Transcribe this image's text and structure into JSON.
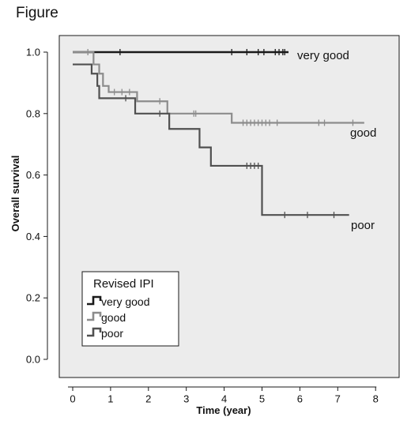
{
  "page": {
    "title": "Figure"
  },
  "chart_data": {
    "type": "line",
    "title": "",
    "xlabel": "Time (year)",
    "ylabel": "Overall survival",
    "xlim": [
      0,
      8
    ],
    "ylim": [
      0,
      1
    ],
    "x_ticks": [
      0,
      1,
      2,
      3,
      4,
      5,
      6,
      7,
      8
    ],
    "y_ticks": [
      "0.0",
      "0.2",
      "0.4",
      "0.6",
      "0.8",
      "1.0"
    ],
    "grid": false,
    "legend": {
      "title": "Revised IPI",
      "placement": "bottom-left",
      "entries": [
        "very good",
        "good",
        "poor"
      ]
    },
    "series": [
      {
        "name": "very good",
        "color": "#1a1a1a",
        "steps": [
          [
            0,
            1.0
          ],
          [
            5.7,
            1.0
          ]
        ],
        "censored": [
          1.25,
          4.2,
          4.6,
          4.9,
          5.05,
          5.35,
          5.45,
          5.55,
          5.6
        ]
      },
      {
        "name": "good",
        "color": "#8c8c8c",
        "steps": [
          [
            0,
            1.0
          ],
          [
            0.55,
            0.96
          ],
          [
            0.7,
            0.93
          ],
          [
            0.8,
            0.89
          ],
          [
            0.95,
            0.87
          ],
          [
            1.7,
            0.84
          ],
          [
            2.5,
            0.8
          ],
          [
            4.2,
            0.77
          ],
          [
            7.7,
            0.77
          ]
        ],
        "censored": [
          0.4,
          1.1,
          1.3,
          1.5,
          2.3,
          3.2,
          3.25,
          4.5,
          4.6,
          4.7,
          4.8,
          4.9,
          5.0,
          5.1,
          5.2,
          5.4,
          6.5,
          6.65,
          7.4
        ]
      },
      {
        "name": "poor",
        "color": "#505050",
        "steps": [
          [
            0,
            0.96
          ],
          [
            0.5,
            0.93
          ],
          [
            0.65,
            0.89
          ],
          [
            0.7,
            0.85
          ],
          [
            1.65,
            0.8
          ],
          [
            2.55,
            0.75
          ],
          [
            3.35,
            0.69
          ],
          [
            3.65,
            0.63
          ],
          [
            5.0,
            0.47
          ],
          [
            7.3,
            0.47
          ]
        ],
        "censored": [
          1.4,
          2.3,
          4.6,
          4.7,
          4.8,
          4.9,
          5.6,
          6.2,
          6.9
        ]
      }
    ],
    "end_labels": [
      {
        "series": "very good",
        "text": "very good"
      },
      {
        "series": "good",
        "text": "good"
      },
      {
        "series": "poor",
        "text": "poor"
      }
    ]
  }
}
